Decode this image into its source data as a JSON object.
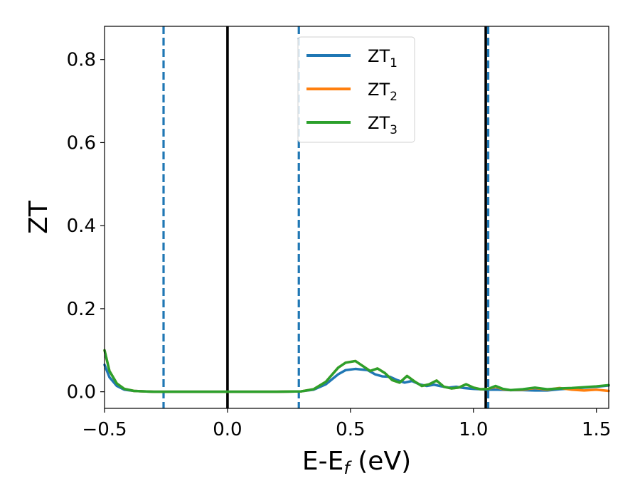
{
  "chart_data": {
    "type": "line",
    "xlabel": {
      "main": "E-E",
      "sub": "f",
      "suffix": " (eV)"
    },
    "ylabel": "ZT",
    "xlim": [
      -0.5,
      1.55
    ],
    "ylim": [
      -0.04,
      0.88
    ],
    "xticks": [
      -0.5,
      0.0,
      0.5,
      1.0,
      1.5
    ],
    "xtick_labels": [
      "−0.5",
      "0.0",
      "0.5",
      "1.0",
      "1.5"
    ],
    "yticks": [
      0.0,
      0.2,
      0.4,
      0.6,
      0.8
    ],
    "ytick_labels": [
      "0.0",
      "0.2",
      "0.4",
      "0.6",
      "0.8"
    ],
    "grid": false,
    "legend_position": "top-center",
    "vertical_lines": [
      {
        "x": -0.26,
        "style": "dashed",
        "color": "#1f77b4"
      },
      {
        "x": 0.0,
        "style": "solid",
        "color": "#000000"
      },
      {
        "x": 0.29,
        "style": "dashed",
        "color": "#1f77b4"
      },
      {
        "x": 1.05,
        "style": "solid",
        "color": "#000000"
      },
      {
        "x": 1.06,
        "style": "dashed",
        "color": "#1f77b4"
      }
    ],
    "series": [
      {
        "name": "ZT",
        "sub": "1",
        "color": "#1f77b4",
        "x": [
          -0.5,
          -0.48,
          -0.45,
          -0.42,
          -0.38,
          -0.34,
          -0.3,
          -0.2,
          0.0,
          0.2,
          0.3,
          0.35,
          0.4,
          0.45,
          0.48,
          0.52,
          0.57,
          0.6,
          0.63,
          0.66,
          0.69,
          0.72,
          0.75,
          0.78,
          0.81,
          0.84,
          0.87,
          0.9,
          0.93,
          0.96,
          1.0,
          1.03,
          1.06,
          1.1,
          1.15,
          1.2,
          1.25,
          1.3,
          1.35,
          1.4,
          1.45,
          1.5,
          1.55
        ],
        "y": [
          0.065,
          0.035,
          0.014,
          0.005,
          0.002,
          0.001,
          0.0,
          0.0,
          0.0,
          0.0,
          0.001,
          0.005,
          0.018,
          0.042,
          0.052,
          0.055,
          0.052,
          0.042,
          0.037,
          0.036,
          0.028,
          0.022,
          0.026,
          0.018,
          0.014,
          0.017,
          0.013,
          0.01,
          0.012,
          0.009,
          0.007,
          0.006,
          0.005,
          0.005,
          0.004,
          0.004,
          0.003,
          0.003,
          0.006,
          0.008,
          0.01,
          0.012,
          0.015
        ]
      },
      {
        "name": "ZT",
        "sub": "2",
        "color": "#ff7f0e",
        "x": [
          -0.5,
          -0.48,
          -0.45,
          -0.42,
          -0.38,
          -0.34,
          -0.3,
          -0.2,
          0.0,
          0.2,
          0.3,
          0.35,
          0.4,
          0.45,
          0.48,
          0.52,
          0.55,
          0.58,
          0.61,
          0.64,
          0.67,
          0.7,
          0.73,
          0.76,
          0.79,
          0.82,
          0.85,
          0.88,
          0.91,
          0.94,
          0.97,
          1.0,
          1.03,
          1.06,
          1.09,
          1.12,
          1.15,
          1.2,
          1.25,
          1.3,
          1.35,
          1.4,
          1.45,
          1.5,
          1.55
        ],
        "y": [
          0.1,
          0.05,
          0.02,
          0.007,
          0.002,
          0.001,
          0.0,
          0.0,
          0.0,
          0.0,
          0.001,
          0.006,
          0.024,
          0.058,
          0.07,
          0.074,
          0.062,
          0.05,
          0.056,
          0.045,
          0.028,
          0.022,
          0.038,
          0.025,
          0.014,
          0.018,
          0.027,
          0.012,
          0.008,
          0.01,
          0.018,
          0.01,
          0.006,
          0.007,
          0.012,
          0.006,
          0.004,
          0.005,
          0.009,
          0.005,
          0.009,
          0.005,
          0.003,
          0.005,
          0.002
        ]
      },
      {
        "name": "ZT",
        "sub": "3",
        "color": "#2ca02c",
        "x": [
          -0.5,
          -0.48,
          -0.45,
          -0.42,
          -0.38,
          -0.34,
          -0.3,
          -0.2,
          0.0,
          0.2,
          0.3,
          0.35,
          0.4,
          0.45,
          0.48,
          0.52,
          0.55,
          0.58,
          0.61,
          0.64,
          0.67,
          0.7,
          0.73,
          0.76,
          0.79,
          0.82,
          0.85,
          0.88,
          0.91,
          0.94,
          0.97,
          1.0,
          1.03,
          1.06,
          1.09,
          1.12,
          1.15,
          1.2,
          1.25,
          1.3,
          1.35,
          1.4,
          1.45,
          1.5,
          1.55
        ],
        "y": [
          0.1,
          0.05,
          0.02,
          0.007,
          0.002,
          0.001,
          0.0,
          0.0,
          0.0,
          0.0,
          0.001,
          0.006,
          0.024,
          0.058,
          0.07,
          0.074,
          0.062,
          0.05,
          0.056,
          0.045,
          0.028,
          0.022,
          0.038,
          0.025,
          0.014,
          0.018,
          0.027,
          0.012,
          0.008,
          0.01,
          0.018,
          0.01,
          0.006,
          0.007,
          0.014,
          0.007,
          0.004,
          0.006,
          0.01,
          0.006,
          0.008,
          0.009,
          0.011,
          0.013,
          0.016
        ]
      }
    ]
  }
}
